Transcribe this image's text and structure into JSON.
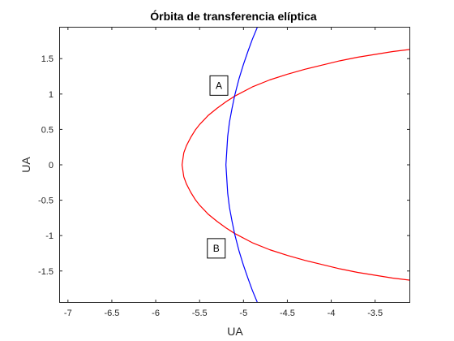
{
  "chart_data": {
    "type": "line",
    "title": "Órbita de transferencia elíptica",
    "xlabel": "UA",
    "ylabel": "UA",
    "xlim": [
      -7.1,
      -3.1
    ],
    "ylim": [
      -1.95,
      1.95
    ],
    "grid": false,
    "xticks": [
      -7,
      -6.5,
      -6,
      -5.5,
      -5,
      -4.5,
      -4,
      -3.5
    ],
    "xtick_labels": [
      "-7",
      "-6.5",
      "-6",
      "-5.5",
      "-5",
      "-4.5",
      "-4",
      "-3.5"
    ],
    "yticks": [
      -1.5,
      -1,
      -0.5,
      0,
      0.5,
      1,
      1.5
    ],
    "ytick_labels": [
      "-1.5",
      "-1",
      "-0.5",
      "0",
      "0.5",
      "1",
      "1.5"
    ],
    "series": [
      {
        "color": "#ff0000",
        "x": [
          -3.1,
          -3.3,
          -3.5,
          -3.7,
          -3.9,
          -4.1,
          -4.3,
          -4.5,
          -4.7,
          -4.9,
          -5.1,
          -5.2,
          -5.3,
          -5.4,
          -5.5,
          -5.55,
          -5.6,
          -5.65,
          -5.68,
          -5.7,
          -5.68,
          -5.65,
          -5.6,
          -5.55,
          -5.5,
          -5.4,
          -5.3,
          -5.2,
          -5.1,
          -4.9,
          -4.7,
          -4.5,
          -4.3,
          -4.1,
          -3.9,
          -3.7,
          -3.5,
          -3.3,
          -3.1
        ],
        "y": [
          1.63,
          1.6,
          1.56,
          1.52,
          1.47,
          1.41,
          1.35,
          1.28,
          1.2,
          1.1,
          0.97,
          0.89,
          0.8,
          0.7,
          0.57,
          0.49,
          0.39,
          0.27,
          0.17,
          0,
          -0.17,
          -0.27,
          -0.39,
          -0.49,
          -0.57,
          -0.7,
          -0.8,
          -0.89,
          -0.97,
          -1.1,
          -1.2,
          -1.28,
          -1.35,
          -1.41,
          -1.47,
          -1.52,
          -1.56,
          -1.6,
          -1.63
        ]
      },
      {
        "color": "#0000ff",
        "x": [
          -4.83,
          -4.9,
          -4.95,
          -5.0,
          -5.05,
          -5.1,
          -5.13,
          -5.16,
          -5.18,
          -5.19,
          -5.2,
          -5.19,
          -5.18,
          -5.16,
          -5.13,
          -5.1,
          -5.05,
          -5.0,
          -4.95,
          -4.9,
          -4.83
        ],
        "y": [
          1.98,
          1.77,
          1.6,
          1.42,
          1.22,
          0.98,
          0.8,
          0.6,
          0.4,
          0.2,
          0,
          -0.2,
          -0.4,
          -0.6,
          -0.8,
          -0.98,
          -1.22,
          -1.42,
          -1.6,
          -1.77,
          -1.98
        ]
      }
    ],
    "annotations": [
      {
        "text": "A",
        "x": -5.28,
        "y": 1.12
      },
      {
        "text": "B",
        "x": -5.31,
        "y": -1.18
      }
    ]
  }
}
